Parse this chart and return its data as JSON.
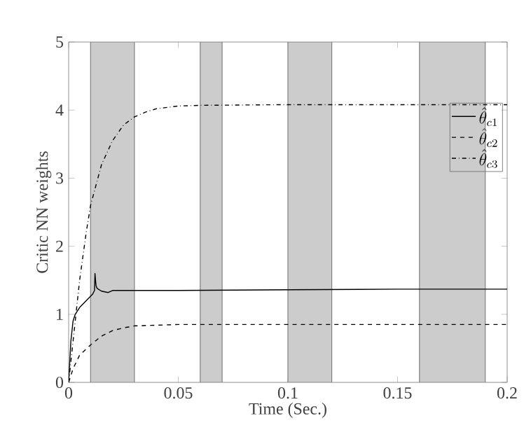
{
  "chart_data": {
    "type": "line",
    "xlabel": "Time (Sec.)",
    "ylabel": "Critic NN weights",
    "xlim": [
      0,
      0.2
    ],
    "ylim": [
      0,
      5
    ],
    "xticks": [
      0,
      0.05,
      0.1,
      0.15,
      0.2
    ],
    "yticks": [
      0,
      1,
      2,
      3,
      4,
      5
    ],
    "grid": false,
    "legend": "right",
    "marker": "none",
    "bands": [
      {
        "axis": "x",
        "from": 0.01,
        "to": 0.03,
        "color": "#cccccc"
      },
      {
        "axis": "x",
        "from": 0.06,
        "to": 0.07,
        "color": "#cccccc"
      },
      {
        "axis": "x",
        "from": 0.1,
        "to": 0.12,
        "color": "#cccccc"
      },
      {
        "axis": "x",
        "from": 0.16,
        "to": 0.19,
        "color": "#cccccc"
      }
    ],
    "series": [
      {
        "name": "\\hat{\\theta}_{c1}",
        "color": "#000000",
        "line_style": "solid",
        "x": [
          0,
          0.001,
          0.002,
          0.003,
          0.005,
          0.008,
          0.011,
          0.0118,
          0.012,
          0.0125,
          0.013,
          0.015,
          0.018,
          0.02,
          0.05,
          0.1,
          0.15,
          0.2
        ],
        "values": [
          0,
          0.6,
          0.9,
          1.0,
          1.1,
          1.2,
          1.3,
          1.35,
          1.6,
          1.42,
          1.38,
          1.34,
          1.32,
          1.35,
          1.35,
          1.36,
          1.37,
          1.37
        ]
      },
      {
        "name": "\\hat{\\theta}_{c2}",
        "color": "#000000",
        "line_style": "dashed",
        "x": [
          0,
          0.002,
          0.005,
          0.01,
          0.015,
          0.02,
          0.025,
          0.03,
          0.04,
          0.05,
          0.1,
          0.2
        ],
        "values": [
          0,
          0.2,
          0.4,
          0.55,
          0.68,
          0.76,
          0.8,
          0.83,
          0.84,
          0.85,
          0.85,
          0.85
        ]
      },
      {
        "name": "\\hat{\\theta}_{c3}",
        "color": "#000000",
        "line_style": "dashdot",
        "x": [
          0,
          0.002,
          0.005,
          0.008,
          0.01,
          0.015,
          0.02,
          0.025,
          0.03,
          0.035,
          0.04,
          0.05,
          0.06,
          0.1,
          0.2
        ],
        "values": [
          0,
          0.6,
          1.5,
          2.2,
          2.6,
          3.2,
          3.55,
          3.78,
          3.9,
          3.97,
          4.02,
          4.06,
          4.07,
          4.08,
          4.08
        ]
      }
    ]
  }
}
